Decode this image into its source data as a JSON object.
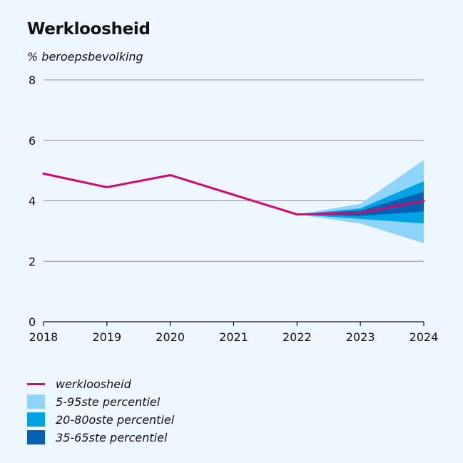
{
  "chart_data": {
    "type": "area",
    "title": "Werkloosheid",
    "ylabel": "% beroepsbevolking",
    "xlabel": "",
    "ylim": [
      0,
      8
    ],
    "yticks": [
      0,
      2,
      4,
      6,
      8
    ],
    "categories": [
      "2018",
      "2019",
      "2020",
      "2021",
      "2022",
      "2023",
      "2024"
    ],
    "series": [
      {
        "name": "werkloosheid",
        "type": "line",
        "color": "#d3076f",
        "values": [
          4.9,
          4.45,
          4.85,
          4.2,
          3.55,
          3.6,
          4.0
        ]
      }
    ],
    "bands": [
      {
        "name": "5-95ste percentiel",
        "color": "#8fd4fb",
        "lower": [
          null,
          null,
          null,
          null,
          3.55,
          3.25,
          2.6
        ],
        "upper": [
          null,
          null,
          null,
          null,
          3.55,
          3.9,
          5.35
        ]
      },
      {
        "name": "20-80oste percentiel",
        "color": "#00a4e6",
        "lower": [
          null,
          null,
          null,
          null,
          3.55,
          3.4,
          3.25
        ],
        "upper": [
          null,
          null,
          null,
          null,
          3.55,
          3.75,
          4.65
        ]
      },
      {
        "name": "35-65ste percentiel",
        "color": "#0860b2",
        "lower": [
          null,
          null,
          null,
          null,
          3.55,
          3.5,
          3.65
        ],
        "upper": [
          null,
          null,
          null,
          null,
          3.55,
          3.68,
          4.3
        ]
      }
    ],
    "grid": true,
    "legend": "bottom-left"
  },
  "legend": [
    {
      "label": "werkloosheid",
      "kind": "line",
      "color": "#d3076f"
    },
    {
      "label": "5-95ste percentiel",
      "kind": "box",
      "color": "#8fd4fb"
    },
    {
      "label": "20-80oste percentiel",
      "kind": "box",
      "color": "#00a4e6"
    },
    {
      "label": "35-65ste percentiel",
      "kind": "box",
      "color": "#0860b2"
    }
  ]
}
